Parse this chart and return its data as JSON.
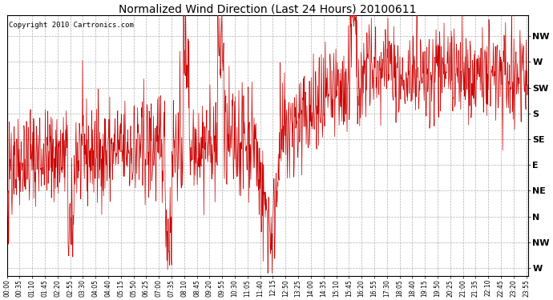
{
  "title": "Normalized Wind Direction (Last 24 Hours) 20100611",
  "copyright_text": "Copyright 2010 Cartronics.com",
  "line_color": "#cc0000",
  "background_color": "#ffffff",
  "grid_color": "#b0b0b0",
  "ytick_labels": [
    "NW",
    "W",
    "SW",
    "S",
    "SE",
    "E",
    "NE",
    "N",
    "NW",
    "W"
  ],
  "ytick_values": [
    9,
    8,
    7,
    6,
    5,
    4,
    3,
    2,
    1,
    0
  ],
  "ylim": [
    -0.3,
    9.8
  ],
  "xlim": [
    0,
    1440
  ],
  "n_points": 1440,
  "seed": 42,
  "xtick_step_minutes": 35
}
